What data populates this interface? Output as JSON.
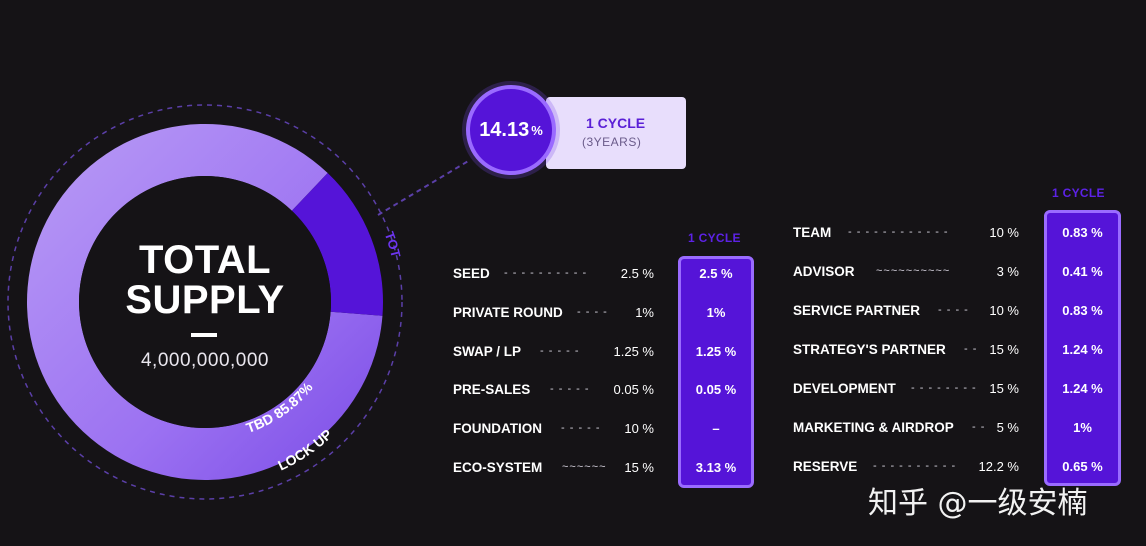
{
  "total_supply": {
    "title_line1": "TOTAL",
    "title_line2": "SUPPLY",
    "value": "4,000,000,000",
    "tbd_label": "TBD 85.87%",
    "lockup_label": "LOCK UP",
    "tot_label": "TOT"
  },
  "cycle_callout": {
    "percent": "14.13",
    "percent_sign": "%",
    "title": "1 CYCLE",
    "subtitle": "(3YEARS)"
  },
  "chart_data": {
    "type": "pie",
    "slices": [
      {
        "label": "TBD",
        "value": 85.87
      },
      {
        "label": "1 CYCLE",
        "value": 14.13
      }
    ],
    "colors": {
      "tbd": "#9466ee",
      "cycle": "#5514d8",
      "accent": "#9a6bff"
    }
  },
  "left_table": {
    "cycle_header": "1 CYCLE",
    "rows": [
      {
        "name": "SEED",
        "dots": "- - - - - - - - - -",
        "pct": "2.5 %",
        "cycle": "2.5 %"
      },
      {
        "name": "PRIVATE ROUND",
        "dots": "- - - -",
        "pct": "1%",
        "cycle": "1%"
      },
      {
        "name": "SWAP / LP",
        "dots": "- - - - -",
        "pct": "1.25 %",
        "cycle": "1.25 %"
      },
      {
        "name": "PRE-SALES",
        "dots": "- - - - -",
        "pct": "0.05 %",
        "cycle": "0.05 %"
      },
      {
        "name": "FOUNDATION",
        "dots": "- - - - -",
        "pct": "10 %",
        "cycle": "–"
      },
      {
        "name": "ECO-SYSTEM",
        "dots": "~~~~~~",
        "pct": "15 %",
        "cycle": "3.13 %"
      }
    ]
  },
  "right_table": {
    "cycle_header": "1 CYCLE",
    "rows": [
      {
        "name": "TEAM",
        "dots": "- - - - - - - - - - - -",
        "pct": "10 %",
        "cycle": "0.83 %"
      },
      {
        "name": "ADVISOR",
        "dots": "~~~~~~~~~~",
        "pct": "3 %",
        "cycle": "0.41 %"
      },
      {
        "name": "SERVICE PARTNER",
        "dots": "- - - -",
        "pct": "10 %",
        "cycle": "0.83 %"
      },
      {
        "name": "STRATEGY'S PARTNER",
        "dots": "- -",
        "pct": "15 %",
        "cycle": "1.24 %"
      },
      {
        "name": "DEVELOPMENT",
        "dots": "- - - - - - - -",
        "pct": "15 %",
        "cycle": "1.24 %"
      },
      {
        "name": "MARKETING & AIRDROP",
        "dots": "- -",
        "pct": "5 %",
        "cycle": "1%"
      },
      {
        "name": "RESERVE",
        "dots": "- - - - - - - - - -",
        "pct": "12.2 %",
        "cycle": "0.65 %"
      }
    ]
  },
  "watermark": "知乎 @一级安楠"
}
